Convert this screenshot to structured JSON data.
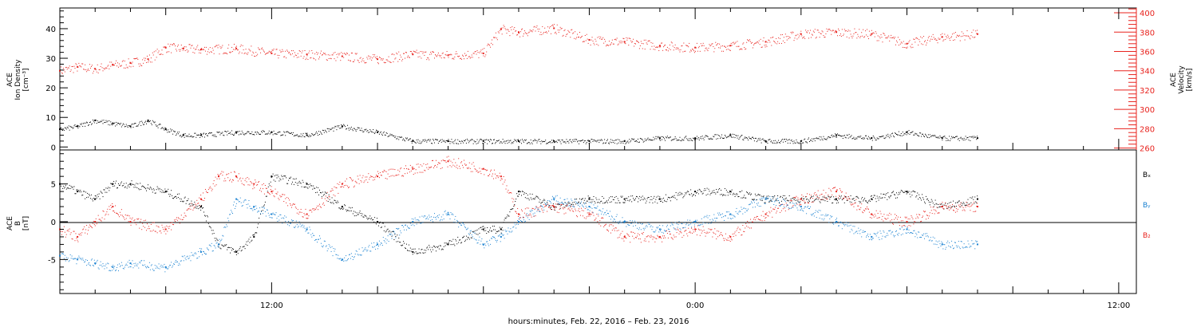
{
  "xlabel": "hours:minutes, Feb. 22, 2016 – Feb. 23, 2016",
  "x_tick_labels": [
    {
      "hour": 12,
      "label": "12:00"
    },
    {
      "hour": 24,
      "label": "0:00"
    },
    {
      "hour": 36,
      "label": "12:00"
    }
  ],
  "colors": {
    "black": "#000000",
    "red": "#e8231e",
    "blue": "#1b82d1"
  },
  "chart_data": [
    {
      "type": "scatter",
      "title": "",
      "x_unit": "hours since 2016-02-22 00:00",
      "xlim": [
        6,
        36.5
      ],
      "ylabel_left": [
        "ACE",
        "Ion Density",
        "[cm⁻³]"
      ],
      "ylabel_right": [
        "ACE",
        "Velocity",
        "[km/s]"
      ],
      "ylim_left": [
        -1,
        47
      ],
      "ylim_right": [
        258,
        405
      ],
      "left_ticks": [
        0,
        10,
        20,
        30,
        40
      ],
      "right_ticks": [
        260,
        280,
        300,
        320,
        340,
        360,
        380,
        400
      ],
      "series": [
        {
          "name": "Ion Density",
          "axis": "left",
          "color": "black",
          "x": [
            6.0,
            6.5,
            7.0,
            7.5,
            8.0,
            8.5,
            9.0,
            9.5,
            10.0,
            11.0,
            12.0,
            13.0,
            14.0,
            15.0,
            16.0,
            17.0,
            18.0,
            19.0,
            20.0,
            21.0,
            22.0,
            23.0,
            24.0,
            25.0,
            26.0,
            27.0,
            28.0,
            29.0,
            30.0,
            31.0,
            32.0
          ],
          "y": [
            6,
            7,
            9,
            8,
            7,
            9,
            6,
            4,
            4,
            5,
            5,
            4,
            7,
            5,
            2,
            2,
            2,
            2,
            2,
            2,
            2,
            3,
            3,
            4,
            2,
            2,
            4,
            3,
            5,
            3,
            3
          ]
        },
        {
          "name": "Velocity",
          "axis": "right",
          "color": "red",
          "x": [
            6.0,
            6.5,
            7.0,
            7.5,
            8.0,
            8.5,
            9.0,
            9.5,
            10.0,
            11.0,
            12.0,
            13.0,
            14.0,
            15.0,
            16.0,
            17.0,
            18.0,
            18.5,
            19.0,
            20.0,
            21.0,
            22.0,
            23.0,
            24.0,
            25.0,
            26.0,
            27.0,
            28.0,
            29.0,
            30.0,
            31.0,
            32.0
          ],
          "y": [
            340,
            344,
            342,
            346,
            348,
            352,
            364,
            363,
            362,
            363,
            358,
            357,
            355,
            352,
            357,
            356,
            358,
            383,
            380,
            384,
            372,
            370,
            366,
            364,
            366,
            370,
            378,
            380,
            378,
            368,
            375,
            378
          ]
        }
      ]
    },
    {
      "type": "scatter",
      "title": "",
      "x_unit": "hours since 2016-02-22 00:00",
      "xlim": [
        6,
        36.5
      ],
      "ylabel": [
        "ACE",
        "B",
        "[nT]"
      ],
      "ylim": [
        -9.5,
        9.5
      ],
      "y_ticks": [
        -5,
        0,
        5
      ],
      "legend": [
        "Bₓ",
        "Bᵧ",
        "B₂"
      ],
      "legend_position": "right",
      "series": [
        {
          "name": "Bx",
          "color": "black",
          "x": [
            6.0,
            6.5,
            7.0,
            7.5,
            8.0,
            9.0,
            10.0,
            10.5,
            11.0,
            11.5,
            12.0,
            13.0,
            14.0,
            15.0,
            16.0,
            17.0,
            18.0,
            18.5,
            19.0,
            20.0,
            21.0,
            22.0,
            23.0,
            24.0,
            25.0,
            26.0,
            27.0,
            28.0,
            29.0,
            30.0,
            31.0,
            32.0
          ],
          "y": [
            5,
            4,
            3,
            5,
            5,
            4,
            2,
            -3,
            -4,
            -2,
            6,
            5,
            2,
            0,
            -4,
            -3,
            -1,
            -1,
            4,
            2,
            3,
            3,
            3,
            4,
            4,
            3,
            3,
            3,
            3,
            4,
            2,
            3
          ]
        },
        {
          "name": "By",
          "color": "blue",
          "x": [
            6.0,
            6.5,
            7.0,
            7.5,
            8.0,
            9.0,
            10.0,
            10.5,
            11.0,
            11.5,
            12.0,
            13.0,
            14.0,
            15.0,
            16.0,
            17.0,
            18.0,
            18.5,
            19.0,
            20.0,
            21.0,
            22.0,
            23.0,
            24.0,
            25.0,
            26.0,
            27.0,
            28.0,
            29.0,
            30.0,
            31.0,
            32.0
          ],
          "y": [
            -4.5,
            -5,
            -5.5,
            -6,
            -5.5,
            -6,
            -4,
            -3,
            3,
            2,
            1,
            -1,
            -5,
            -3,
            0,
            1,
            -3,
            -2,
            0,
            3,
            2,
            0,
            -1,
            0,
            1,
            3,
            2,
            0,
            -2,
            -1,
            -3,
            -3
          ]
        },
        {
          "name": "Bz",
          "color": "red",
          "x": [
            6.0,
            6.5,
            7.0,
            7.5,
            8.0,
            9.0,
            10.0,
            10.5,
            11.0,
            11.5,
            12.0,
            13.0,
            14.0,
            15.0,
            16.0,
            17.0,
            18.0,
            18.5,
            19.0,
            20.0,
            21.0,
            22.0,
            23.0,
            24.0,
            25.0,
            26.0,
            27.0,
            28.0,
            29.0,
            30.0,
            31.0,
            32.0
          ],
          "y": [
            -1,
            -2,
            0,
            2,
            0,
            -1,
            3,
            6,
            6,
            5,
            4,
            1,
            5,
            6,
            7,
            8,
            7,
            6,
            1,
            2,
            1,
            -2,
            -2,
            -1,
            -2,
            1,
            3,
            4,
            1,
            0,
            2,
            2
          ]
        }
      ]
    }
  ]
}
